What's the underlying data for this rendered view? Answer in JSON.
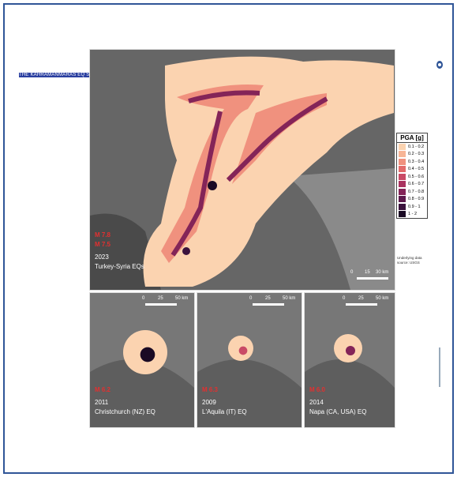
{
  "header": {
    "title": "THE KAHRAMANMARAS EQ SEQUENCE"
  },
  "main_panel": {
    "magnitudes": [
      "M 7.8",
      "M 7.5"
    ],
    "year": "2023",
    "label": "Turkey-Syria EQs",
    "scale": [
      "0",
      "15",
      "30 km"
    ]
  },
  "legend": {
    "title": "PGA [g]",
    "items": [
      {
        "label": "0.1 - 0.2",
        "color": "#fbd3b0"
      },
      {
        "label": "0.2 - 0.3",
        "color": "#f7b596"
      },
      {
        "label": "0.3 - 0.4",
        "color": "#f0917e"
      },
      {
        "label": "0.4 - 0.5",
        "color": "#e36b6b"
      },
      {
        "label": "0.5 - 0.6",
        "color": "#c94a66"
      },
      {
        "label": "0.6 - 0.7",
        "color": "#a9325f"
      },
      {
        "label": "0.7 - 0.8",
        "color": "#842458"
      },
      {
        "label": "0.8 - 0.9",
        "color": "#5e1a4d"
      },
      {
        "label": "0.9 - 1",
        "color": "#3b123d"
      },
      {
        "label": "1 - 2",
        "color": "#1a0a24"
      }
    ],
    "note": [
      "Underlying data",
      "source: USGS"
    ]
  },
  "panels": [
    {
      "magnitude": "M 6.2",
      "year": "2011",
      "label": "Christchurch (NZ) EQ",
      "scale": [
        "0",
        "25",
        "50 km"
      ]
    },
    {
      "magnitude": "M 6.3",
      "year": "2009",
      "label": "L'Aquila (IT) EQ",
      "scale": [
        "0",
        "25",
        "50 km"
      ]
    },
    {
      "magnitude": "M 6.0",
      "year": "2014",
      "label": "Napa (CA, USA) EQ",
      "scale": [
        "0",
        "25",
        "50 km"
      ]
    }
  ]
}
